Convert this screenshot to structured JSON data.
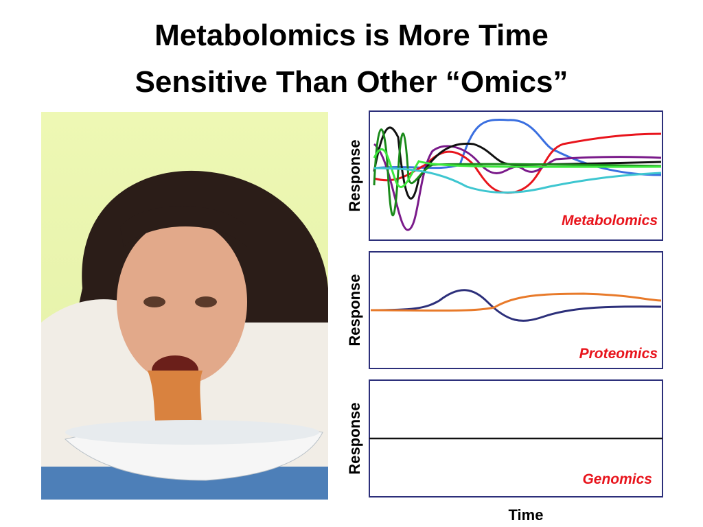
{
  "title": {
    "line1": "Metabolomics is More Time",
    "line2": "Sensitive Than Other “Omics”"
  },
  "panels": [
    {
      "y_label": "Response",
      "label": "Metabolomics"
    },
    {
      "y_label": "Response",
      "label": "Proteomics"
    },
    {
      "y_label": "Response",
      "label": "Genomics"
    }
  ],
  "x_label": "Time"
}
